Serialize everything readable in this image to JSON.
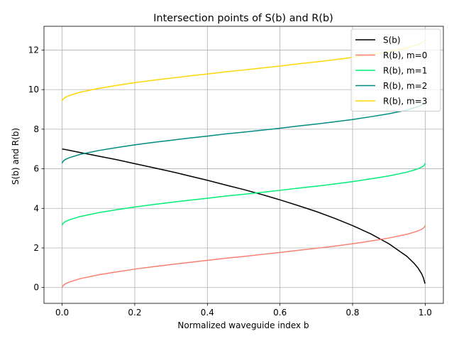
{
  "chart_data": {
    "type": "line",
    "title": "Intersection points of S(b) and R(b)",
    "xlabel": "Normalized waveguide index b",
    "ylabel": "S(b) and R(b)",
    "xlim": [
      -0.05,
      1.05
    ],
    "ylim": [
      -0.8,
      13.2
    ],
    "xticks": [
      0.0,
      0.2,
      0.4,
      0.6,
      0.8,
      1.0
    ],
    "xtick_labels": [
      "0.0",
      "0.2",
      "0.4",
      "0.6",
      "0.8",
      "1.0"
    ],
    "yticks": [
      0,
      2,
      4,
      6,
      8,
      10,
      12
    ],
    "ytick_labels": [
      "0",
      "2",
      "4",
      "6",
      "8",
      "10",
      "12"
    ],
    "grid": true,
    "legend_position": "top-right",
    "x": [
      0.0,
      0.001,
      0.005,
      0.01,
      0.02,
      0.05,
      0.1,
      0.15,
      0.2,
      0.25,
      0.3,
      0.35,
      0.4,
      0.45,
      0.5,
      0.55,
      0.6,
      0.65,
      0.7,
      0.75,
      0.8,
      0.85,
      0.9,
      0.95,
      0.97,
      0.98,
      0.99,
      0.995,
      0.999,
      1.0
    ],
    "series": [
      {
        "name": "S(b)",
        "color": "#000000",
        "values": [
          7.0,
          7.0,
          6.98,
          6.97,
          6.93,
          6.82,
          6.64,
          6.46,
          6.26,
          6.06,
          5.86,
          5.64,
          5.42,
          5.18,
          4.95,
          4.7,
          4.43,
          4.14,
          3.84,
          3.5,
          3.13,
          2.71,
          2.21,
          1.57,
          1.21,
          0.99,
          0.7,
          0.49,
          0.22,
          0.2
        ]
      },
      {
        "name": "R(b), m=0",
        "color": "#fa8072",
        "values": [
          0.0,
          0.06,
          0.14,
          0.2,
          0.28,
          0.45,
          0.64,
          0.79,
          0.93,
          1.05,
          1.16,
          1.27,
          1.37,
          1.48,
          1.57,
          1.67,
          1.77,
          1.88,
          1.98,
          2.09,
          2.21,
          2.35,
          2.5,
          2.69,
          2.8,
          2.86,
          2.94,
          3.0,
          3.08,
          3.14
        ]
      },
      {
        "name": "R(b), m=1",
        "color": "#00ee76",
        "values": [
          3.14,
          3.2,
          3.28,
          3.34,
          3.42,
          3.59,
          3.78,
          3.93,
          4.07,
          4.19,
          4.3,
          4.41,
          4.51,
          4.62,
          4.71,
          4.81,
          4.91,
          5.02,
          5.12,
          5.23,
          5.35,
          5.49,
          5.64,
          5.83,
          5.94,
          6.0,
          6.08,
          6.14,
          6.22,
          6.28
        ]
      },
      {
        "name": "R(b), m=2",
        "color": "#008b80",
        "values": [
          6.28,
          6.34,
          6.42,
          6.48,
          6.56,
          6.73,
          6.92,
          7.07,
          7.21,
          7.33,
          7.44,
          7.55,
          7.65,
          7.76,
          7.85,
          7.95,
          8.05,
          8.16,
          8.26,
          8.37,
          8.49,
          8.63,
          8.78,
          8.97,
          9.08,
          9.14,
          9.22,
          9.28,
          9.36,
          9.42
        ]
      },
      {
        "name": "R(b), m=3",
        "color": "#ffd700",
        "values": [
          9.42,
          9.48,
          9.56,
          9.62,
          9.7,
          9.87,
          10.06,
          10.21,
          10.35,
          10.47,
          10.58,
          10.69,
          10.79,
          10.9,
          10.99,
          11.09,
          11.19,
          11.3,
          11.4,
          11.51,
          11.63,
          11.77,
          11.92,
          12.11,
          12.22,
          12.28,
          12.36,
          12.42,
          12.5,
          12.56
        ]
      }
    ]
  }
}
